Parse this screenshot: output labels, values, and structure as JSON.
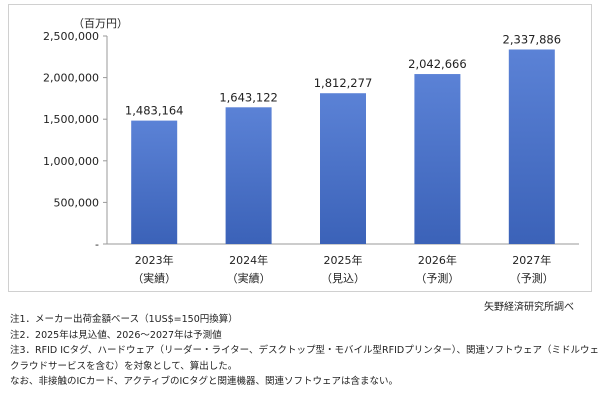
{
  "chart_data": {
    "type": "bar",
    "unit": "（百万円）",
    "categories": [
      "2023年",
      "2024年",
      "2025年",
      "2026年",
      "2027年"
    ],
    "category_sublabels": [
      "（実績）",
      "（実績）",
      "（見込）",
      "（予測）",
      "（予測）"
    ],
    "values": [
      1483164,
      1643122,
      1812277,
      2042666,
      2337886
    ],
    "value_labels": [
      "1,483,164",
      "1,643,122",
      "1,812,277",
      "2,042,666",
      "2,337,886"
    ],
    "ylim": [
      0,
      2500000
    ],
    "yticks": [
      0,
      500000,
      1000000,
      1500000,
      2000000,
      2500000
    ],
    "ytick_labels": [
      "-",
      "500,000",
      "1,000,000",
      "1,500,000",
      "2,000,000",
      "2,500,000"
    ],
    "bar_color_top": "#5b82d6",
    "bar_color_bottom": "#3b62b8",
    "grid": false,
    "legend": "none"
  },
  "source": "矢野経済研究所調べ",
  "notes": [
    "注1．メーカー出荷金額ベース（1US$=150円換算）",
    "注2．2025年は見込値、2026～2027年は予測値",
    "注3．RFID ICタグ、ハードウェア（リーダー・ライター、デスクトップ型・モバイル型RFIDプリンター）、関連ソフトウェア（ミドルウェア、",
    "クラウドサービスを含む）を対象として、算出した。",
    "なお、非接触のICカード、アクティブのICタグと関連機器、関連ソフトウェアは含まない。"
  ]
}
